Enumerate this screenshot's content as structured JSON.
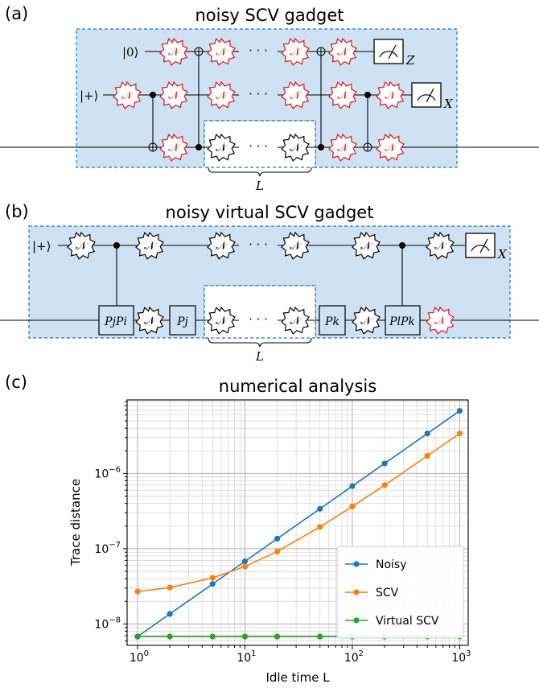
{
  "panels": {
    "a": {
      "label": "(a)",
      "title": "noisy SCV gadget"
    },
    "b": {
      "label": "(b)",
      "title": "noisy virtual SCV gadget"
    },
    "c": {
      "label": "(c)",
      "title": "numerical analysis"
    }
  },
  "circuit": {
    "noise_symbol": "𝒩",
    "dots": "· · ·",
    "ket0": "|0⟩",
    "ketplus": "|+⟩",
    "meas_z": "Z",
    "meas_x": "X",
    "idle_label": "L",
    "pauli": {
      "pjpi": "PjPi",
      "pj": "Pj",
      "pk": "Pk",
      "plpk": "PlPk"
    },
    "colors": {
      "noise_red": "#d62728",
      "noise_black": "#000000",
      "box_fill": "#cfe2f3",
      "dash": "#1f77b4"
    }
  },
  "chart_data": {
    "type": "line",
    "title": "numerical analysis",
    "xlabel": "Idle time L",
    "ylabel": "Trace distance",
    "xscale": "log",
    "yscale": "log",
    "xlim": [
      0.8,
      1200
    ],
    "ylim": [
      5.2e-09,
      9.5e-06
    ],
    "x": [
      1,
      2,
      5,
      10,
      20,
      50,
      100,
      200,
      500,
      1000
    ],
    "xticks": [
      {
        "value": 1,
        "base": "10",
        "exp": "0"
      },
      {
        "value": 10,
        "base": "10",
        "exp": "1"
      },
      {
        "value": 100,
        "base": "10",
        "exp": "2"
      },
      {
        "value": 1000,
        "base": "10",
        "exp": "3"
      }
    ],
    "yticks": [
      {
        "value": 1e-08,
        "base": "10",
        "exp": "−8"
      },
      {
        "value": 1e-07,
        "base": "10",
        "exp": "−7"
      },
      {
        "value": 1e-06,
        "base": "10",
        "exp": "−6"
      }
    ],
    "grid": true,
    "legend_position": "lower-right",
    "series": [
      {
        "name": "Noisy",
        "color": "#1f77b4",
        "values": [
          6.8e-09,
          1.36e-08,
          3.4e-08,
          6.8e-08,
          1.36e-07,
          3.4e-07,
          6.8e-07,
          1.36e-06,
          3.4e-06,
          6.8e-06
        ]
      },
      {
        "name": "SCV",
        "color": "#ff7f0e",
        "values": [
          2.7e-08,
          3.05e-08,
          4.1e-08,
          5.8e-08,
          9.2e-08,
          1.95e-07,
          3.65e-07,
          7e-07,
          1.72e-06,
          3.4e-06
        ]
      },
      {
        "name": "Virtual SCV",
        "color": "#2ca02c",
        "values": [
          6.8e-09,
          6.8e-09,
          6.8e-09,
          6.8e-09,
          6.8e-09,
          6.8e-09,
          6.8e-09,
          6.8e-09,
          6.8e-09,
          6.8e-09
        ]
      }
    ]
  }
}
